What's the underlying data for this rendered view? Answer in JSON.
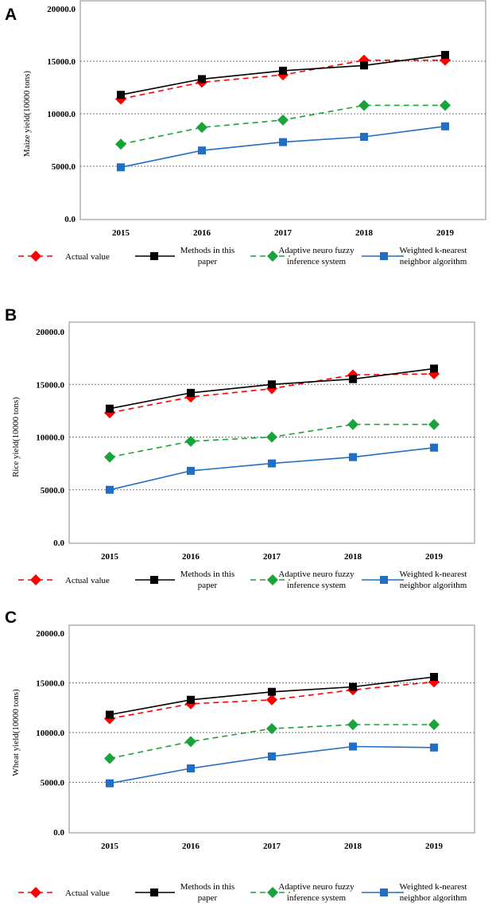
{
  "chart_data": [
    {
      "type": "line",
      "panel": "A",
      "ylabel": "Maize yield(10000 tons)",
      "xlabel": "",
      "categories": [
        "2015",
        "2016",
        "2017",
        "2018",
        "2019"
      ],
      "ylim": [
        0,
        20000
      ],
      "yticks": [
        "0.0",
        "5000.0",
        "10000.0",
        "15000.0",
        "20000.0"
      ],
      "grid": "horizontal dotted",
      "series": [
        {
          "name": "Actual value",
          "values": [
            11400,
            13000,
            13700,
            15100,
            15100
          ]
        },
        {
          "name": "Methods in this paper",
          "values": [
            11800,
            13300,
            14100,
            14600,
            15600
          ]
        },
        {
          "name": "Adaptive neuro fuzzy inference system",
          "values": [
            7100,
            8700,
            9400,
            10800,
            10800
          ]
        },
        {
          "name": "Weighted k-nearest neighbor algorithm",
          "values": [
            4900,
            6500,
            7300,
            7800,
            8800
          ]
        }
      ]
    },
    {
      "type": "line",
      "panel": "B",
      "ylabel": "Rice yield(10000 tons)",
      "xlabel": "",
      "categories": [
        "2015",
        "2016",
        "2017",
        "2018",
        "2019"
      ],
      "ylim": [
        0,
        20000
      ],
      "yticks": [
        "0.0",
        "5000.0",
        "10000.0",
        "15000.0",
        "20000.0"
      ],
      "grid": "horizontal dotted",
      "series": [
        {
          "name": "Actual value",
          "values": [
            12300,
            13800,
            14600,
            15900,
            16000
          ]
        },
        {
          "name": "Methods in this paper",
          "values": [
            12700,
            14200,
            15000,
            15500,
            16500
          ]
        },
        {
          "name": "Adaptive neuro fuzzy inference system",
          "values": [
            8100,
            9600,
            10000,
            11200,
            11200
          ]
        },
        {
          "name": "Weighted k-nearest neighbor algorithm",
          "values": [
            5000,
            6800,
            7500,
            8100,
            9000
          ]
        }
      ]
    },
    {
      "type": "line",
      "panel": "C",
      "ylabel": "Wheat yield(10000 tons)",
      "xlabel": "",
      "categories": [
        "2015",
        "2016",
        "2017",
        "2018",
        "2019"
      ],
      "ylim": [
        0,
        20000
      ],
      "yticks": [
        "0.0",
        "5000.0",
        "10000.0",
        "15000.0",
        "20000.0"
      ],
      "grid": "horizontal dotted",
      "series": [
        {
          "name": "Actual value",
          "values": [
            11400,
            12900,
            13300,
            14300,
            15100
          ]
        },
        {
          "name": "Methods in this paper",
          "values": [
            11800,
            13300,
            14100,
            14600,
            15600
          ]
        },
        {
          "name": "Adaptive neuro fuzzy inference system",
          "values": [
            7400,
            9100,
            10400,
            10800,
            10800
          ]
        },
        {
          "name": "Weighted k-nearest neighbor algorithm",
          "values": [
            4900,
            6400,
            7600,
            8600,
            8500
          ]
        }
      ]
    }
  ],
  "series_style": [
    {
      "color": "#ff0000",
      "marker": "diamond",
      "dash": "dashed"
    },
    {
      "color": "#000000",
      "marker": "square",
      "dash": "solid"
    },
    {
      "color": "#1aa33a",
      "marker": "diamond",
      "dash": "dashed"
    },
    {
      "color": "#1f6fc4",
      "marker": "square",
      "dash": "solid"
    }
  ],
  "legend": [
    {
      "lines": [
        "Actual value"
      ]
    },
    {
      "lines": [
        "Methods in this",
        "paper"
      ]
    },
    {
      "lines": [
        "Adaptive neuro fuzzy",
        "inference system"
      ]
    },
    {
      "lines": [
        "Weighted k-nearest",
        "neighbor algorithm"
      ]
    }
  ]
}
